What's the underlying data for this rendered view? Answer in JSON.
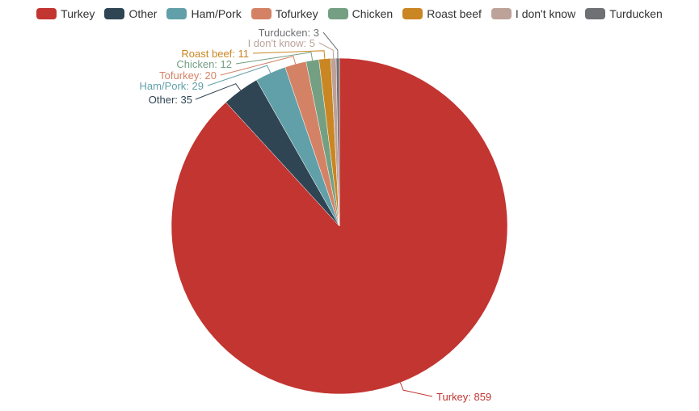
{
  "chart_data": {
    "type": "pie",
    "legend_position": "top-center",
    "slices": [
      {
        "name": "Turkey",
        "value": 859,
        "color": "#c23531",
        "label": "Turkey: 859"
      },
      {
        "name": "Other",
        "value": 35,
        "color": "#2f4554",
        "label": "Other: 35"
      },
      {
        "name": "Ham/Pork",
        "value": 29,
        "color": "#61a0a8",
        "label": "Ham/Pork: 29"
      },
      {
        "name": "Tofurkey",
        "value": 20,
        "color": "#d48265",
        "label": "Tofurkey: 20"
      },
      {
        "name": "Chicken",
        "value": 12,
        "color": "#749f83",
        "label": "Chicken: 12"
      },
      {
        "name": "Roast beef",
        "value": 11,
        "color": "#ca8622",
        "label": "Roast beef: 11"
      },
      {
        "name": "I don't know",
        "value": 5,
        "color": "#bda29a",
        "label": "I don't know: 5"
      },
      {
        "name": "Turducken",
        "value": 3,
        "color": "#6e7074",
        "label": "Turducken: 3"
      }
    ]
  }
}
